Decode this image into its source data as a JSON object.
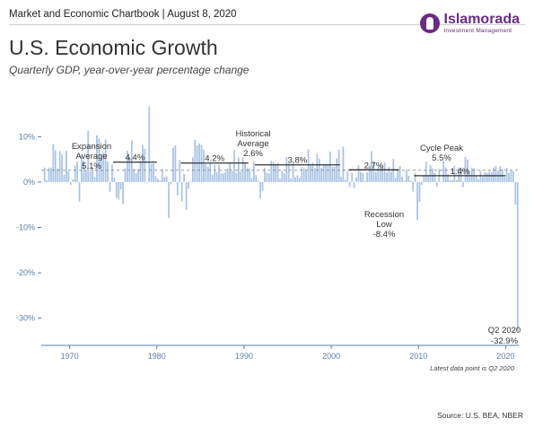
{
  "header": {
    "source_line": "Market and Economic Chartbook | August 8, 2020",
    "logo_name": "Islamorada",
    "logo_sub": "Investment Management"
  },
  "title": "U.S. Economic Growth",
  "subtitle": "Quarterly GDP, year-over-year percentage change",
  "footnote": "Latest data point is Q2 2020",
  "source": "Source: U.S. BEA, NBER",
  "colors": {
    "bar": "#a9c4e4",
    "axis": "#5a7fa8",
    "average_line": "#333333",
    "cycle_peak": "#4a8a5a",
    "recession_low": "#d9534f"
  },
  "chart_data": {
    "type": "bar",
    "title": "U.S. Economic Growth",
    "subtitle": "Quarterly GDP, year-over-year percentage change",
    "x_range": [
      1966.75,
      2021.5
    ],
    "ylim": [
      -36,
      17
    ],
    "y_ticks": [
      {
        "value": 10,
        "label": "10%"
      },
      {
        "value": 0,
        "label": "0%"
      },
      {
        "value": -10,
        "label": "-10%"
      },
      {
        "value": -20,
        "label": "-20%"
      },
      {
        "value": -30,
        "label": "-30%"
      }
    ],
    "x_ticks": [
      {
        "value": 1970,
        "label": "1970"
      },
      {
        "value": 1980,
        "label": "1980"
      },
      {
        "value": 1990,
        "label": "1990"
      },
      {
        "value": 2000,
        "label": "2000"
      },
      {
        "value": 2010,
        "label": "2010"
      },
      {
        "value": 2020,
        "label": "2020"
      }
    ],
    "start_year": 1967,
    "quarterly_values": [
      3.2,
      0.4,
      3.1,
      3.2,
      8.4,
      7.0,
      3.0,
      6.8,
      6.1,
      1.6,
      6.9,
      2.4,
      -0.6,
      0.6,
      3.7,
      4.5,
      -4.3,
      5.8,
      4.7,
      2.4,
      11.3,
      2.3,
      3.1,
      1.1,
      10.3,
      9.6,
      5.7,
      6.5,
      9.4,
      4.5,
      -2.1,
      3.8,
      1.0,
      -3.5,
      -3.9,
      -1.6,
      -4.8,
      3.1,
      6.9,
      5.5,
      9.2,
      2.9,
      1.9,
      2.9,
      4.7,
      8.1,
      7.3,
      0.0,
      16.7,
      4.0,
      4.1,
      1.3,
      0.7,
      0.4,
      2.9,
      1.1,
      1.3,
      -8.0,
      -0.5,
      7.6,
      8.1,
      -2.9,
      4.9,
      -4.3,
      1.8,
      -6.1,
      -1.5,
      0.2,
      5.4,
      9.3,
      8.1,
      8.5,
      8.2,
      7.1,
      3.9,
      3.3,
      4.1,
      1.6,
      3.8,
      2.2,
      3.8,
      1.9,
      1.9,
      2.2,
      3.0,
      4.4,
      2.4,
      7.1,
      2.1,
      5.4,
      2.3,
      5.4,
      4.1,
      3.1,
      3.0,
      0.8,
      4.4,
      1.5,
      0.3,
      -3.6,
      -1.9,
      3.1,
      2.0,
      1.9,
      4.7,
      4.4,
      4.0,
      4.2,
      0.7,
      2.5,
      1.9,
      5.5,
      4.1,
      0.8,
      4.4,
      1.1,
      1.5,
      0.9,
      3.3,
      3.0,
      2.6,
      7.2,
      3.7,
      4.3,
      3.1,
      6.2,
      5.2,
      3.1,
      4.0,
      3.9,
      3.8,
      6.7,
      3.4,
      3.4,
      5.2,
      7.1,
      1.2,
      7.8,
      0.5,
      2.4,
      -1.1,
      2.1,
      -1.3,
      1.1,
      3.7,
      2.2,
      2.0,
      0.3,
      2.1,
      3.8,
      6.8,
      4.7,
      2.2,
      3.0,
      3.7,
      3.5,
      4.3,
      2.1,
      3.4,
      2.3,
      5.1,
      0.9,
      2.9,
      3.5,
      1.2,
      0.3,
      2.7,
      1.4,
      0.3,
      -2.1,
      2.0,
      -8.4,
      -4.4,
      -0.6,
      1.5,
      4.5,
      1.5,
      3.7,
      3.0,
      2.0,
      -1.0,
      2.9,
      -0.1,
      4.7,
      3.2,
      1.7,
      0.5,
      0.5,
      3.6,
      0.5,
      3.2,
      3.2,
      -1.1,
      5.5,
      5.0,
      2.3,
      3.2,
      3.0,
      1.3,
      0.6,
      2.4,
      1.2,
      2.2,
      2.0,
      2.3,
      2.2,
      3.2,
      3.5,
      2.5,
      3.5,
      2.9,
      1.1,
      3.1,
      2.0,
      2.6,
      2.4,
      -5.0,
      -32.9
    ],
    "averages": [
      {
        "start": 1975.0,
        "end": 1980.0,
        "value": 4.4,
        "label": "4.4%"
      },
      {
        "start": 1982.75,
        "end": 1990.5,
        "value": 4.2,
        "label": "4.2%"
      },
      {
        "start": 1991.25,
        "end": 2001.0,
        "value": 3.8,
        "label": "3.8%"
      },
      {
        "start": 2002.0,
        "end": 2007.75,
        "value": 2.7,
        "label": "2.7%"
      },
      {
        "start": 2009.5,
        "end": 2020.0,
        "value": 1.4,
        "label": "1.4%"
      }
    ],
    "reference_line": {
      "value": 2.6,
      "style": "dashed"
    },
    "annotations": {
      "expansion": [
        "Expansion",
        "Average",
        "5.1%"
      ],
      "historical": [
        "Historical",
        "Average",
        "2.6%"
      ],
      "cycle_peak": [
        "Cycle Peak",
        "5.5%"
      ],
      "recession_low": [
        "Recession",
        "Low",
        "-8.4%"
      ],
      "q2_2020": [
        "Q2 2020",
        "-32.9%"
      ]
    }
  }
}
